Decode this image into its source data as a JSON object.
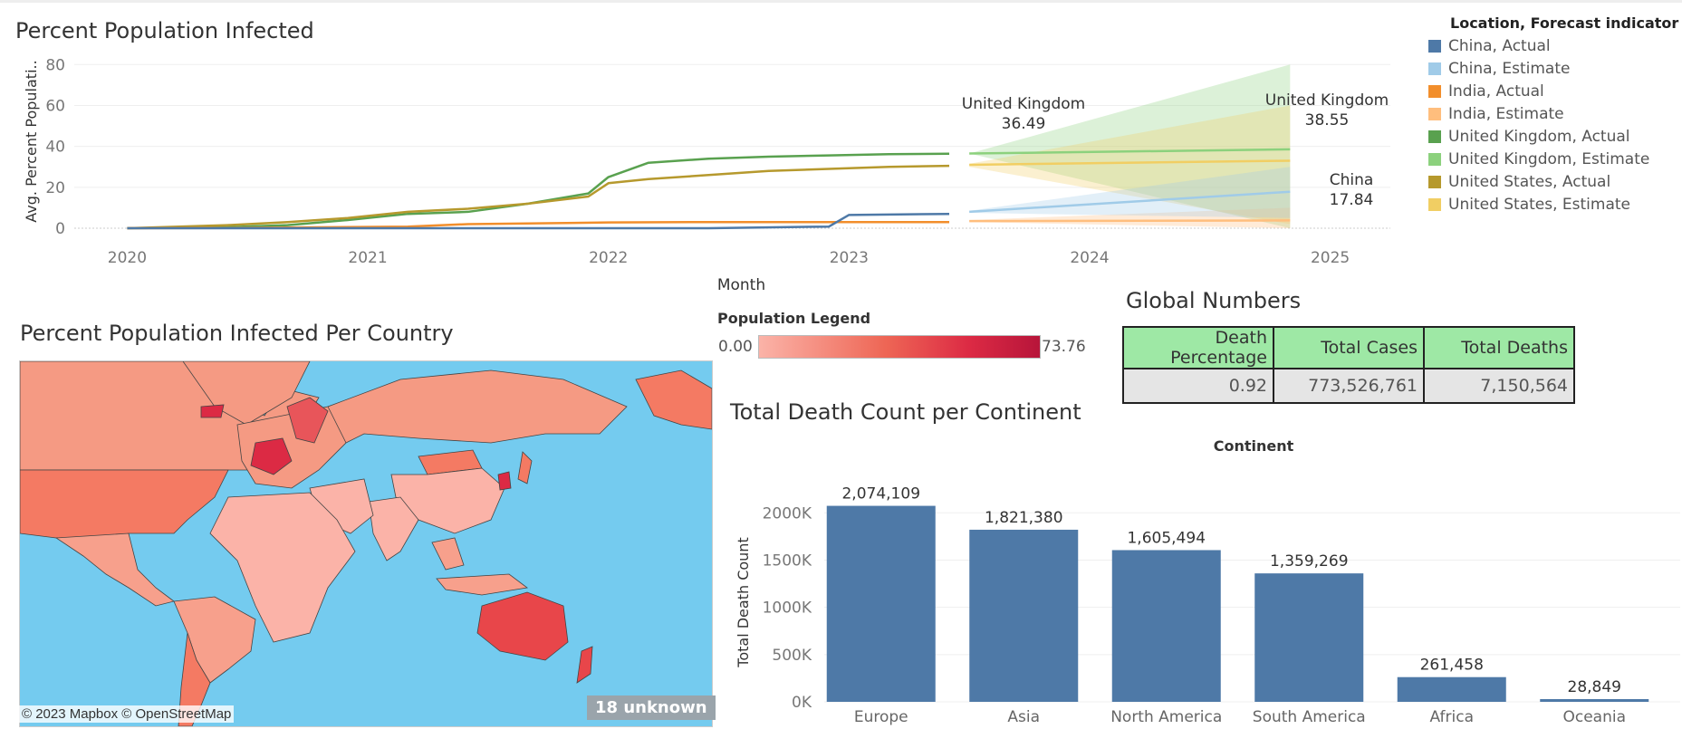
{
  "chart_data": [
    {
      "type": "line",
      "title": "Percent Population Infected",
      "xlabel": "Month",
      "ylabel": "Avg. Percent Populati..",
      "ylim": [
        0,
        85
      ],
      "x_ticks": [
        "2020",
        "2021",
        "2022",
        "2023",
        "2024",
        "2025"
      ],
      "y_ticks": [
        0,
        20,
        40,
        60,
        80
      ],
      "grid": true,
      "legend": {
        "title": "Location, Forecast indicator",
        "position": "right",
        "items": [
          {
            "label": "China, Actual",
            "color": "#4e79a7"
          },
          {
            "label": "China, Estimate",
            "color": "#a0cbe8"
          },
          {
            "label": "India, Actual",
            "color": "#f28e2b"
          },
          {
            "label": "India, Estimate",
            "color": "#ffbe7d"
          },
          {
            "label": "United Kingdom, Actual",
            "color": "#59a14f"
          },
          {
            "label": "United Kingdom, Estimate",
            "color": "#8cd17d"
          },
          {
            "label": "United States, Actual",
            "color": "#b6992d"
          },
          {
            "label": "United States, Estimate",
            "color": "#f1ce63"
          }
        ]
      },
      "series": [
        {
          "name": "United Kingdom, Actual",
          "color": "#59a14f",
          "points": [
            [
              "2020-01",
              0
            ],
            [
              "2020-06",
              0.5
            ],
            [
              "2020-09",
              1.5
            ],
            [
              "2020-12",
              4
            ],
            [
              "2021-03",
              7
            ],
            [
              "2021-06",
              8
            ],
            [
              "2021-09",
              12
            ],
            [
              "2021-12",
              17
            ],
            [
              "2022-01",
              25
            ],
            [
              "2022-03",
              32
            ],
            [
              "2022-06",
              34
            ],
            [
              "2022-09",
              35
            ],
            [
              "2022-12",
              35.6
            ],
            [
              "2023-03",
              36.2
            ],
            [
              "2023-06",
              36.4
            ]
          ]
        },
        {
          "name": "United States, Actual",
          "color": "#b6992d",
          "points": [
            [
              "2020-01",
              0
            ],
            [
              "2020-06",
              1.5
            ],
            [
              "2020-09",
              3
            ],
            [
              "2020-12",
              5
            ],
            [
              "2021-03",
              8
            ],
            [
              "2021-06",
              9.5
            ],
            [
              "2021-09",
              12
            ],
            [
              "2021-12",
              15.5
            ],
            [
              "2022-01",
              22
            ],
            [
              "2022-03",
              24
            ],
            [
              "2022-06",
              26
            ],
            [
              "2022-09",
              28
            ],
            [
              "2022-12",
              29
            ],
            [
              "2023-03",
              30
            ],
            [
              "2023-06",
              30.5
            ]
          ]
        },
        {
          "name": "India, Actual",
          "color": "#f28e2b",
          "points": [
            [
              "2020-01",
              0
            ],
            [
              "2020-06",
              0.1
            ],
            [
              "2021-03",
              0.8
            ],
            [
              "2021-06",
              2
            ],
            [
              "2022-01",
              2.8
            ],
            [
              "2022-06",
              3
            ],
            [
              "2023-06",
              3
            ]
          ]
        },
        {
          "name": "China, Actual",
          "color": "#4e79a7",
          "points": [
            [
              "2020-01",
              0
            ],
            [
              "2022-06",
              0
            ],
            [
              "2022-12",
              0.8
            ],
            [
              "2023-01",
              6.5
            ],
            [
              "2023-06",
              7
            ]
          ]
        },
        {
          "name": "United Kingdom, Estimate",
          "color": "#8cd17d",
          "points": [
            [
              "2023-07",
              36.5
            ],
            [
              "2024-11",
              38.55
            ]
          ],
          "band": [
            [
              36.5,
              36.5
            ],
            [
              0,
              80
            ]
          ]
        },
        {
          "name": "United States, Estimate",
          "color": "#f1ce63",
          "points": [
            [
              "2023-07",
              31
            ],
            [
              "2024-11",
              33
            ]
          ],
          "band": [
            [
              30,
              31.5
            ],
            [
              2,
              60
            ]
          ]
        },
        {
          "name": "India, Estimate",
          "color": "#ffbe7d",
          "points": [
            [
              "2023-07",
              3.5
            ],
            [
              "2024-11",
              3.8
            ]
          ],
          "band": [
            [
              3,
              4
            ],
            [
              0,
              10
            ]
          ]
        },
        {
          "name": "China, Estimate",
          "color": "#a0cbe8",
          "points": [
            [
              "2023-07",
              8
            ],
            [
              "2024-11",
              17.84
            ]
          ],
          "band": [
            [
              7.5,
              8.5
            ],
            [
              5,
              30
            ]
          ]
        }
      ],
      "annotations": [
        {
          "text": "United Kingdom",
          "value": "36.49"
        },
        {
          "text": "United Kingdom",
          "value": "38.55"
        },
        {
          "text": "China",
          "value": "17.84"
        }
      ]
    },
    {
      "type": "bar",
      "title": "Total Death Count per Continent",
      "header": "Continent",
      "ylabel": "Total Death Count",
      "categories": [
        "Europe",
        "Asia",
        "North America",
        "South America",
        "Africa",
        "Oceania"
      ],
      "values": [
        2074109,
        1821380,
        1605494,
        1359269,
        261458,
        28849
      ],
      "value_labels": [
        "2,074,109",
        "1,821,380",
        "1,605,494",
        "1,359,269",
        "261,458",
        "28,849"
      ],
      "y_tick_labels": [
        "0K",
        "500K",
        "1000K",
        "1500K",
        "2000K"
      ],
      "ylim": [
        0,
        2300000
      ],
      "color": "#4e79a7"
    }
  ],
  "map": {
    "title": "Percent Population Infected Per Country",
    "credit": "© 2023 Mapbox © OpenStreetMap",
    "unknown_badge": "18 unknown",
    "ocean_color": "#74cbef",
    "legend_title": "Population Legend",
    "legend_min": "0.00",
    "legend_max": "73.76"
  },
  "global_numbers": {
    "title": "Global Numbers",
    "headers": [
      "Death Percentage",
      "Total Cases",
      "Total Deaths"
    ],
    "values": [
      "0.92",
      "773,526,761",
      "7,150,564"
    ]
  }
}
